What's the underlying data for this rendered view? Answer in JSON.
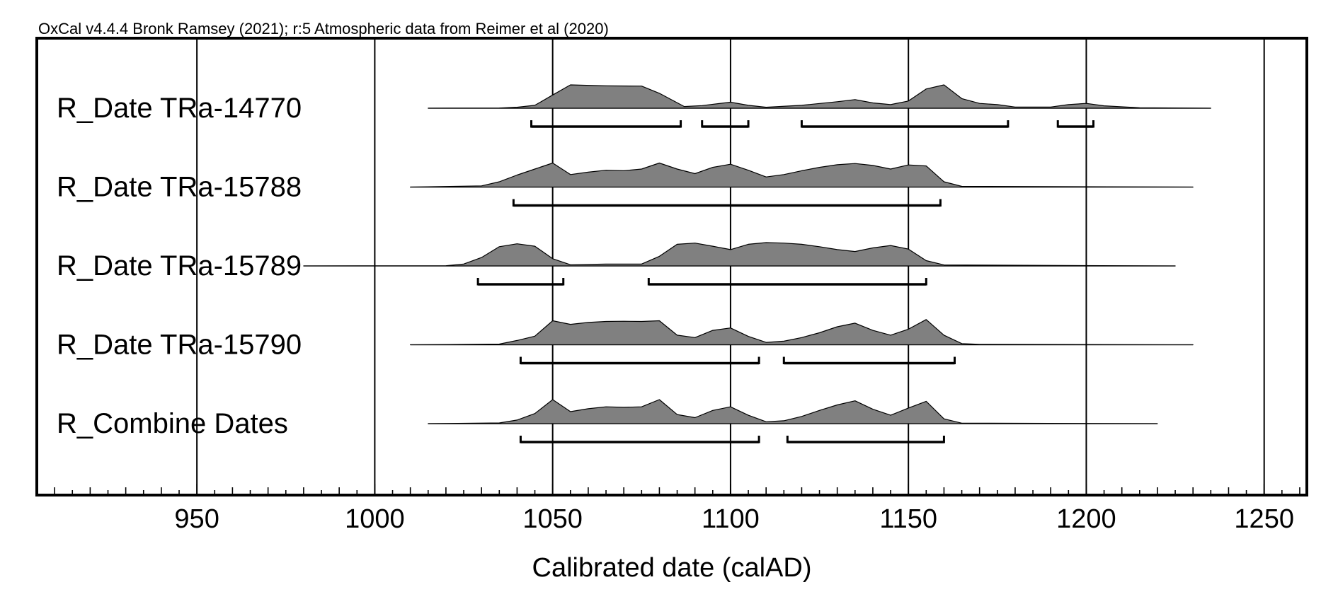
{
  "header": {
    "caption": "OxCal v4.4.4 Bronk Ramsey (2021); r:5 Atmospheric data from Reimer et al (2020)"
  },
  "chart_data": {
    "type": "area",
    "title": "",
    "xlabel": "Calibrated date (calAD)",
    "ylabel": "",
    "xlim": [
      905,
      1262
    ],
    "x_ticks": [
      950,
      1000,
      1050,
      1100,
      1150,
      1200,
      1250
    ],
    "x_tick_labels": [
      "950",
      "1000",
      "1050",
      "1100",
      "1150",
      "1200",
      "1250"
    ],
    "gridlines_x": [
      950,
      1000,
      1050,
      1100,
      1150,
      1200,
      1250
    ],
    "grid": true,
    "legend": "none",
    "colors": {
      "distribution_fill": "#808080",
      "distribution_stroke": "#000000",
      "range_bar": "#000000",
      "frame": "#000000",
      "grid": "#000000"
    },
    "series": [
      {
        "name": "R_Date TRa-14770",
        "baseline_range": [
          1015,
          1235
        ],
        "x": [
          1015,
          1035,
          1040,
          1045,
          1050,
          1055,
          1065,
          1075,
          1080,
          1087,
          1092,
          1100,
          1105,
          1110,
          1120,
          1130,
          1135,
          1140,
          1145,
          1150,
          1155,
          1160,
          1165,
          1170,
          1175,
          1180,
          1190,
          1195,
          1200,
          1205,
          1215,
          1235
        ],
        "y": [
          0,
          0.01,
          0.04,
          0.12,
          0.55,
          0.97,
          0.93,
          0.92,
          0.62,
          0.07,
          0.11,
          0.25,
          0.12,
          0.04,
          0.12,
          0.27,
          0.36,
          0.22,
          0.15,
          0.3,
          0.8,
          0.97,
          0.4,
          0.2,
          0.15,
          0.05,
          0.05,
          0.15,
          0.2,
          0.1,
          0.02,
          0
        ],
        "ranges": [
          [
            1044,
            1086
          ],
          [
            1092,
            1105
          ],
          [
            1120,
            1178
          ],
          [
            1192,
            1202
          ]
        ]
      },
      {
        "name": "R_Date TRa-15788",
        "baseline_range": [
          1010,
          1230
        ],
        "x": [
          1010,
          1030,
          1035,
          1040,
          1045,
          1050,
          1055,
          1060,
          1065,
          1070,
          1075,
          1080,
          1085,
          1090,
          1095,
          1100,
          1105,
          1110,
          1115,
          1120,
          1125,
          1130,
          1135,
          1140,
          1145,
          1150,
          1155,
          1160,
          1165,
          1230
        ],
        "y": [
          0,
          0.05,
          0.22,
          0.5,
          0.75,
          1.0,
          0.52,
          0.62,
          0.7,
          0.68,
          0.75,
          1.0,
          0.75,
          0.56,
          0.82,
          0.95,
          0.7,
          0.42,
          0.52,
          0.68,
          0.82,
          0.93,
          0.98,
          0.9,
          0.75,
          0.92,
          0.88,
          0.22,
          0.03,
          0
        ],
        "ranges": [
          [
            1039,
            1159
          ]
        ]
      },
      {
        "name": "R_Date TRa-15789",
        "baseline_range": [
          980,
          1225
        ],
        "x": [
          980,
          1020,
          1025,
          1030,
          1035,
          1040,
          1045,
          1050,
          1055,
          1065,
          1075,
          1080,
          1085,
          1090,
          1095,
          1100,
          1105,
          1110,
          1115,
          1120,
          1125,
          1130,
          1135,
          1140,
          1145,
          1150,
          1155,
          1160,
          1225
        ],
        "y": [
          0,
          0.01,
          0.08,
          0.35,
          0.8,
          0.92,
          0.82,
          0.3,
          0.05,
          0.08,
          0.08,
          0.4,
          0.9,
          0.95,
          0.82,
          0.68,
          0.9,
          0.97,
          0.95,
          0.9,
          0.8,
          0.68,
          0.6,
          0.75,
          0.85,
          0.7,
          0.22,
          0.04,
          0
        ],
        "ranges": [
          [
            1029,
            1053
          ],
          [
            1077,
            1155
          ]
        ]
      },
      {
        "name": "R_Date TRa-15790",
        "baseline_range": [
          1010,
          1230
        ],
        "x": [
          1010,
          1035,
          1040,
          1045,
          1050,
          1055,
          1060,
          1065,
          1070,
          1075,
          1080,
          1085,
          1090,
          1095,
          1100,
          1105,
          1110,
          1115,
          1120,
          1125,
          1130,
          1135,
          1140,
          1145,
          1150,
          1155,
          1160,
          1165,
          1170,
          1230
        ],
        "y": [
          0,
          0.03,
          0.18,
          0.36,
          1.0,
          0.85,
          0.93,
          0.97,
          0.98,
          0.97,
          1.0,
          0.4,
          0.3,
          0.6,
          0.7,
          0.35,
          0.1,
          0.15,
          0.3,
          0.5,
          0.75,
          0.9,
          0.6,
          0.4,
          0.65,
          1.05,
          0.4,
          0.05,
          0.02,
          0
        ],
        "ranges": [
          [
            1041,
            1108
          ],
          [
            1115,
            1163
          ]
        ]
      },
      {
        "name": "R_Combine Dates",
        "baseline_range": [
          1015,
          1220
        ],
        "x": [
          1015,
          1035,
          1040,
          1045,
          1050,
          1055,
          1060,
          1065,
          1070,
          1075,
          1080,
          1085,
          1090,
          1095,
          1100,
          1105,
          1110,
          1115,
          1120,
          1125,
          1130,
          1135,
          1140,
          1145,
          1150,
          1155,
          1160,
          1165,
          1220
        ],
        "y": [
          0,
          0.03,
          0.15,
          0.42,
          1.0,
          0.5,
          0.62,
          0.7,
          0.68,
          0.7,
          1.0,
          0.38,
          0.25,
          0.55,
          0.7,
          0.35,
          0.08,
          0.12,
          0.3,
          0.55,
          0.78,
          0.95,
          0.6,
          0.35,
          0.65,
          0.93,
          0.2,
          0.02,
          0
        ],
        "ranges": [
          [
            1041,
            1108
          ],
          [
            1116,
            1160
          ]
        ]
      }
    ]
  }
}
